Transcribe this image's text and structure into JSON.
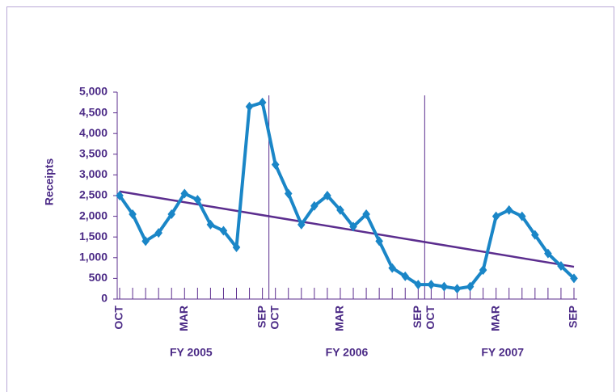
{
  "chart_data": {
    "type": "line",
    "y_label": "Receipts",
    "categories": [
      "OCT",
      null,
      null,
      null,
      null,
      "MAR",
      null,
      null,
      null,
      null,
      null,
      "SEP",
      "OCT",
      null,
      null,
      null,
      null,
      "MAR",
      null,
      null,
      null,
      null,
      null,
      "SEP",
      "OCT",
      null,
      null,
      null,
      null,
      "MAR",
      null,
      null,
      null,
      null,
      null,
      "SEP"
    ],
    "groups": [
      "FY 2005",
      "FY 2006",
      "FY 2007"
    ],
    "series": [
      {
        "name": "Receipts",
        "color": "#1a86c7",
        "values": [
          2500,
          2050,
          1400,
          1600,
          2050,
          2550,
          2400,
          1800,
          1650,
          1250,
          4650,
          4750,
          3250,
          2550,
          1800,
          2250,
          2500,
          2150,
          1750,
          2050,
          1400,
          750,
          550,
          350,
          350,
          300,
          250,
          300,
          700,
          2000,
          2150,
          2000,
          1550,
          1100,
          800,
          500
        ]
      }
    ],
    "trend_line": {
      "color": "#5b2d8e",
      "values": [
        2600,
        780
      ]
    },
    "ylim": [
      0,
      5000
    ],
    "yticks": [
      0,
      500,
      {
        "value": 1000,
        "label": "1,000"
      },
      {
        "value": 1500,
        "label": "1,500"
      },
      {
        "value": 2000,
        "label": "2,000"
      },
      {
        "value": 2500,
        "label": "2,500"
      },
      {
        "value": 3000,
        "label": "3,000"
      },
      {
        "value": 3500,
        "label": "3,500"
      },
      {
        "value": 4000,
        "label": "4,000"
      },
      {
        "value": 4500,
        "label": "4,500"
      },
      {
        "value": 5000,
        "label": "5,000"
      }
    ]
  }
}
